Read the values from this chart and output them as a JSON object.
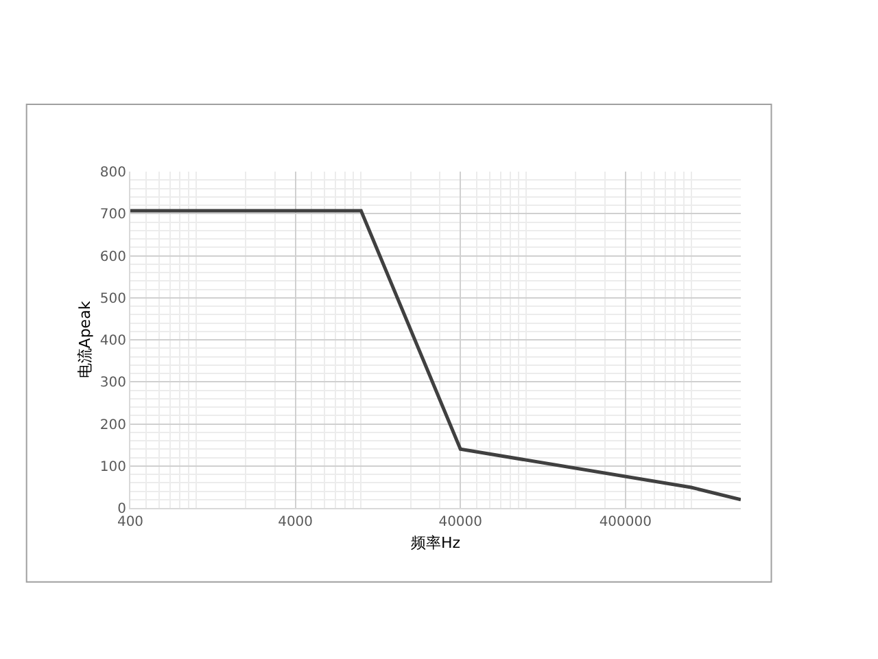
{
  "chart_data": {
    "type": "line",
    "xlabel": "频率Hz",
    "ylabel": "电流Apeak",
    "x": [
      400,
      10000,
      40000,
      1000000,
      2000000
    ],
    "series": [
      {
        "color": "#404040",
        "values": [
          707,
          707,
          140,
          49,
          20
        ]
      }
    ],
    "log": "x",
    "xlim": [
      400,
      2000000
    ],
    "xticks": [
      400,
      4000,
      40000,
      400000
    ],
    "ylim": [
      0,
      800
    ],
    "yticks": [
      0,
      100,
      200,
      300,
      400,
      500,
      600,
      700,
      800
    ],
    "grid": true,
    "legend": false,
    "marker": "none",
    "line_style": "solid"
  }
}
